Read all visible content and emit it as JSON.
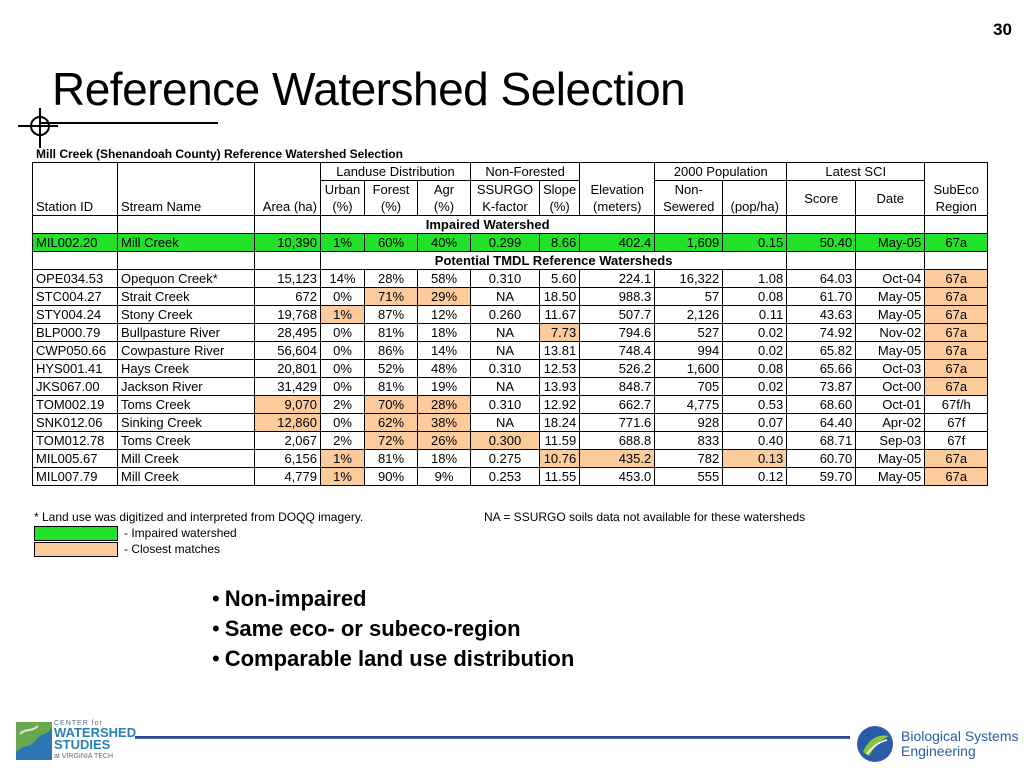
{
  "slide_number": "30",
  "title": "Reference Watershed Selection",
  "table_caption": "Mill Creek (Shenandoah County) Reference Watershed Selection",
  "header": {
    "group_landuse": "Landuse Distribution",
    "group_nonforested": "Non-Forested",
    "group_population": "2000 Population",
    "group_sci": "Latest SCI",
    "station_id": "Station ID",
    "stream_name": "Stream Name",
    "area": "Area (ha)",
    "urban_1": "Urban",
    "urban_2": "(%)",
    "forest_1": "Forest",
    "forest_2": "(%)",
    "agr_1": "Agr",
    "agr_2": "(%)",
    "ssurgo_1": "SSURGO",
    "ssurgo_2": "K-factor",
    "slope_1": "Slope",
    "slope_2": "(%)",
    "elev_1": "Elevation",
    "elev_2": "(meters)",
    "nonsewered_1": "Non-",
    "nonsewered_2": "Sewered",
    "popha": "(pop/ha)",
    "score": "Score",
    "date": "Date",
    "subeco_1": "SubEco",
    "subeco_2": "Region"
  },
  "section_impaired": "Impaired Watershed",
  "section_potential": "Potential TMDL Reference Watersheds",
  "impaired_row": [
    "MIL002.20",
    "Mill Creek",
    "10,390",
    "1%",
    "60%",
    "40%",
    "0.299",
    "8.66",
    "402.4",
    "1,609",
    "0.15",
    "50.40",
    "May-05",
    "67a"
  ],
  "rows": [
    {
      "cells": [
        "OPE034.53",
        "Opequon Creek*",
        "15,123",
        "14%",
        "28%",
        "58%",
        "0.310",
        "5.60",
        "224.1",
        "16,322",
        "1.08",
        "64.03",
        "Oct-04",
        "67a"
      ],
      "highlight": [
        13
      ]
    },
    {
      "cells": [
        "STC004.27",
        "Strait Creek",
        "672",
        "0%",
        "71%",
        "29%",
        "NA",
        "18.50",
        "988.3",
        "57",
        "0.08",
        "61.70",
        "May-05",
        "67a"
      ],
      "highlight": [
        4,
        5,
        13
      ]
    },
    {
      "cells": [
        "STY004.24",
        "Stony Creek",
        "19,768",
        "1%",
        "87%",
        "12%",
        "0.260",
        "11.67",
        "507.7",
        "2,126",
        "0.11",
        "43.63",
        "May-05",
        "67a"
      ],
      "highlight": [
        3,
        13
      ]
    },
    {
      "cells": [
        "BLP000.79",
        "Bullpasture River",
        "28,495",
        "0%",
        "81%",
        "18%",
        "NA",
        "7.73",
        "794.6",
        "527",
        "0.02",
        "74.92",
        "Nov-02",
        "67a"
      ],
      "highlight": [
        7,
        13
      ]
    },
    {
      "cells": [
        "CWP050.66",
        "Cowpasture River",
        "56,604",
        "0%",
        "86%",
        "14%",
        "NA",
        "13.81",
        "748.4",
        "994",
        "0.02",
        "65.82",
        "May-05",
        "67a"
      ],
      "highlight": [
        13
      ]
    },
    {
      "cells": [
        "HYS001.41",
        "Hays Creek",
        "20,801",
        "0%",
        "52%",
        "48%",
        "0.310",
        "12.53",
        "526.2",
        "1,600",
        "0.08",
        "65.66",
        "Oct-03",
        "67a"
      ],
      "highlight": [
        13
      ]
    },
    {
      "cells": [
        "JKS067.00",
        "Jackson River",
        "31,429",
        "0%",
        "81%",
        "19%",
        "NA",
        "13.93",
        "848.7",
        "705",
        "0.02",
        "73.87",
        "Oct-00",
        "67a"
      ],
      "highlight": [
        13
      ]
    },
    {
      "cells": [
        "TOM002.19",
        "Toms Creek",
        "9,070",
        "2%",
        "70%",
        "28%",
        "0.310",
        "12.92",
        "662.7",
        "4,775",
        "0.53",
        "68.60",
        "Oct-01",
        "67f/h"
      ],
      "highlight": [
        2,
        4,
        5
      ]
    },
    {
      "cells": [
        "SNK012.06",
        "Sinking Creek",
        "12,860",
        "0%",
        "62%",
        "38%",
        "NA",
        "18.24",
        "771.6",
        "928",
        "0.07",
        "64.40",
        "Apr-02",
        "67f"
      ],
      "highlight": [
        2,
        4,
        5
      ]
    },
    {
      "cells": [
        "TOM012.78",
        "Toms Creek",
        "2,067",
        "2%",
        "72%",
        "26%",
        "0.300",
        "11.59",
        "688.8",
        "833",
        "0.40",
        "68.71",
        "Sep-03",
        "67f"
      ],
      "highlight": [
        4,
        5,
        6
      ]
    },
    {
      "cells": [
        "MIL005.67",
        "Mill Creek",
        "6,156",
        "1%",
        "81%",
        "18%",
        "0.275",
        "10.76",
        "435.2",
        "782",
        "0.13",
        "60.70",
        "May-05",
        "67a"
      ],
      "highlight": [
        3,
        7,
        8,
        10,
        13
      ]
    },
    {
      "cells": [
        "MIL007.79",
        "Mill Creek",
        "4,779",
        "1%",
        "90%",
        "9%",
        "0.253",
        "11.55",
        "453.0",
        "555",
        "0.12",
        "59.70",
        "May-05",
        "67a"
      ],
      "highlight": [
        3,
        13
      ]
    }
  ],
  "footnote_left": "* Land use was digitized and interpreted from DOQQ imagery.",
  "footnote_right": "NA = SSURGO soils data not available for these watersheds",
  "legend": [
    {
      "label": "- Impaired watershed",
      "color": "#22e12a"
    },
    {
      "label": "- Closest matches",
      "color": "#fbcb9b"
    }
  ],
  "bullets": [
    "Non-impaired",
    "Same eco- or subeco-region",
    "Comparable land use distribution"
  ],
  "logos": {
    "left_line1": "CENTER for",
    "left_line2a": "WATERSHED",
    "left_line2b": "STUDIES",
    "left_line3": "at VIRGINIA TECH",
    "right_line1": "Biological Systems",
    "right_line2": "Engineering"
  },
  "colors": {
    "impaired": "#22e12a",
    "closest_match": "#fbcb9b",
    "footer_rule": "#2d4f92"
  }
}
